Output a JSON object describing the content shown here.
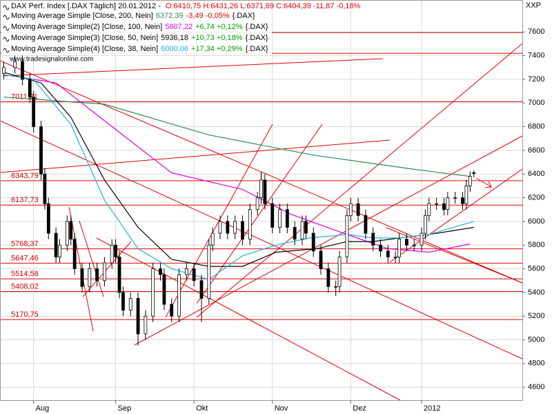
{
  "chart_data": {
    "type": "candlestick",
    "header": {
      "instrument": "DAX Perf. Index [.DAX Täglich] 20.01.2012 - ",
      "quote": "O:6410,75 H:6431,26 L:6371,69 C:6404,39 -11,87 -0,18%"
    },
    "watermark": "www.tradesignalonline.com",
    "axis_label": "XXP",
    "xlim": [
      -1,
      139
    ],
    "ylim": [
      4490,
      7870
    ],
    "yticks": [
      4600,
      4800,
      5000,
      5200,
      5400,
      5600,
      5800,
      6000,
      6200,
      6400,
      6600,
      6800,
      7000,
      7200,
      7400,
      7600
    ],
    "xticks": [
      {
        "value": 8,
        "label": "Aug"
      },
      {
        "value": 30,
        "label": "Sep"
      },
      {
        "value": 51,
        "label": "Okt"
      },
      {
        "value": 72,
        "label": "Nov"
      },
      {
        "value": 93,
        "label": "Dez"
      },
      {
        "value": 112,
        "label": "2012"
      }
    ],
    "grid": true,
    "up_color": "#ffffff",
    "down_color": "#000000",
    "x": [
      0,
      3,
      5,
      7,
      8,
      10,
      11,
      12,
      14,
      15,
      17,
      18,
      19,
      21,
      23,
      25,
      27,
      29,
      30,
      31,
      32,
      34,
      36,
      38,
      40,
      42,
      43,
      45,
      47,
      49,
      51,
      53,
      55,
      56,
      58,
      60,
      62,
      64,
      66,
      68,
      69,
      70,
      72,
      74,
      76,
      78,
      80,
      81,
      83,
      85,
      87,
      89,
      90,
      92,
      93,
      95,
      97,
      99,
      101,
      103,
      105,
      106,
      108,
      110,
      112,
      113,
      114,
      116,
      118,
      119,
      121,
      123,
      124,
      125,
      126
    ],
    "ohlc": [
      [
        7250,
        7350,
        7200,
        7300
      ],
      [
        7300,
        7400,
        7250,
        7350
      ],
      [
        7350,
        7400,
        7150,
        7200
      ],
      [
        7200,
        7250,
        7000,
        7050
      ],
      [
        7050,
        7100,
        6750,
        6800
      ],
      [
        6800,
        6850,
        6350,
        6400
      ],
      [
        6400,
        6450,
        6100,
        6150
      ],
      [
        6150,
        6200,
        5850,
        5900
      ],
      [
        5900,
        5950,
        5650,
        5700
      ],
      [
        5700,
        5850,
        5650,
        5800
      ],
      [
        5800,
        6050,
        5750,
        6000
      ],
      [
        6000,
        6050,
        5800,
        5850
      ],
      [
        5850,
        5900,
        5550,
        5600
      ],
      [
        5600,
        5650,
        5400,
        5450
      ],
      [
        5450,
        5650,
        5400,
        5600
      ],
      [
        5600,
        5650,
        5450,
        5500
      ],
      [
        5500,
        5700,
        5450,
        5650
      ],
      [
        5650,
        5850,
        5600,
        5800
      ],
      [
        5800,
        5850,
        5650,
        5700
      ],
      [
        5700,
        5750,
        5350,
        5400
      ],
      [
        5400,
        5450,
        5200,
        5250
      ],
      [
        5250,
        5400,
        5200,
        5350
      ],
      [
        5350,
        5400,
        4950,
        5050
      ],
      [
        5050,
        5250,
        5000,
        5200
      ],
      [
        5200,
        5650,
        5150,
        5600
      ],
      [
        5600,
        5650,
        5500,
        5550
      ],
      [
        5550,
        5600,
        5250,
        5300
      ],
      [
        5300,
        5350,
        5150,
        5200
      ],
      [
        5200,
        5600,
        5150,
        5550
      ],
      [
        5550,
        5650,
        5500,
        5600
      ],
      [
        5600,
        5650,
        5450,
        5500
      ],
      [
        5500,
        5550,
        5150,
        5350
      ],
      [
        5350,
        5850,
        5300,
        5800
      ],
      [
        5800,
        5950,
        5750,
        5900
      ],
      [
        5900,
        6050,
        5850,
        6000
      ],
      [
        6000,
        6050,
        5850,
        5900
      ],
      [
        5900,
        6050,
        5850,
        6000
      ],
      [
        6000,
        6050,
        5800,
        5850
      ],
      [
        5850,
        6150,
        5800,
        6100
      ],
      [
        6100,
        6250,
        6050,
        6200
      ],
      [
        6200,
        6420,
        6150,
        6350
      ],
      [
        6350,
        6400,
        6100,
        6150
      ],
      [
        6150,
        6200,
        5900,
        5950
      ],
      [
        5950,
        6150,
        5900,
        6100
      ],
      [
        6100,
        6150,
        5900,
        5950
      ],
      [
        5950,
        6000,
        5800,
        5850
      ],
      [
        5850,
        6050,
        5800,
        6000
      ],
      [
        6000,
        6050,
        5850,
        5900
      ],
      [
        5900,
        5950,
        5700,
        5750
      ],
      [
        5750,
        5800,
        5550,
        5600
      ],
      [
        5600,
        5650,
        5400,
        5450
      ],
      [
        5450,
        5500,
        5370,
        5450
      ],
      [
        5450,
        5750,
        5400,
        5700
      ],
      [
        5700,
        6100,
        5650,
        6050
      ],
      [
        6050,
        6200,
        6000,
        6150
      ],
      [
        6150,
        6200,
        6000,
        6050
      ],
      [
        6050,
        6100,
        5850,
        5900
      ],
      [
        5900,
        5950,
        5750,
        5800
      ],
      [
        5800,
        5850,
        5700,
        5750
      ],
      [
        5750,
        5800,
        5650,
        5700
      ],
      [
        5700,
        5750,
        5650,
        5700
      ],
      [
        5700,
        5900,
        5650,
        5850
      ],
      [
        5850,
        5900,
        5750,
        5800
      ],
      [
        5800,
        5850,
        5750,
        5800
      ],
      [
        5800,
        5950,
        5750,
        5900
      ],
      [
        5900,
        6100,
        5850,
        6050
      ],
      [
        6050,
        6200,
        6000,
        6150
      ],
      [
        6150,
        6200,
        6100,
        6150
      ],
      [
        6150,
        6200,
        6050,
        6100
      ],
      [
        6100,
        6250,
        6050,
        6200
      ],
      [
        6200,
        6250,
        6150,
        6200
      ],
      [
        6200,
        6250,
        6100,
        6150
      ],
      [
        6150,
        6350,
        6100,
        6300
      ],
      [
        6300,
        6420,
        6250,
        6380
      ],
      [
        6410.75,
        6431.26,
        6371.69,
        6404.39
      ]
    ],
    "levels": [
      {
        "value": 7011.21,
        "label": "7011,21"
      },
      {
        "value": 6343.79,
        "label": "6343,79"
      },
      {
        "value": 6137.73,
        "label": "6137,73"
      },
      {
        "value": 5768.37,
        "label": "5768,37"
      },
      {
        "value": 5647.46,
        "label": "5647,46"
      },
      {
        "value": 5514.58,
        "label": "5514,58"
      },
      {
        "value": 5408.02,
        "label": "5408,02"
      },
      {
        "value": 5170.75,
        "label": "5170,75"
      }
    ],
    "unlabeled_levels": [
      7595,
      7420
    ],
    "level_color": "#e00000",
    "series": [
      {
        "name": "Moving Average Simple [Close, 200, Nein]",
        "last": "6372,39",
        "change": "-3,49 -0,05%",
        "change_color": "#e00000",
        "symbol": "{.DAX}",
        "color": "#2e8b57",
        "x": [
          0,
          27,
          55,
          83,
          110,
          125
        ],
        "values": [
          7050,
          6990,
          6730,
          6560,
          6440,
          6380
        ]
      },
      {
        "name": "Moving Average Simple(2) [Close, 100, Nein]",
        "last": "5807,22",
        "change": "+6,74 +0,12%",
        "change_color": "#00a000",
        "symbol": "{.DAX}",
        "color": "#e000e0",
        "x": [
          0,
          14,
          27,
          45,
          64,
          77,
          92,
          103,
          114,
          125
        ],
        "values": [
          7240,
          7170,
          6850,
          6410,
          6270,
          6060,
          5890,
          5770,
          5740,
          5810
        ]
      },
      {
        "name": "Moving Average Simple(3) [Close, 50, Nein]",
        "last": "5936,18",
        "change": "+10,73 +0,18%",
        "change_color": "#00a000",
        "symbol": "{.DAX}",
        "color": "#000000",
        "x": [
          0,
          10,
          18,
          27,
          36,
          45,
          55,
          64,
          73,
          84,
          92,
          99,
          106,
          114,
          126
        ],
        "values": [
          7260,
          7170,
          6880,
          6350,
          5950,
          5680,
          5620,
          5620,
          5740,
          5770,
          5830,
          5830,
          5860,
          5890,
          5950
        ]
      },
      {
        "name": "Moving Average Simple(4) [Close, 38, Nein]",
        "last": "6000,06",
        "change": "+17,34 +0,29%",
        "change_color": "#00a000",
        "symbol": "{.DAX}",
        "color": "#20b0e0",
        "x": [
          0,
          8,
          18,
          27,
          36,
          45,
          55,
          64,
          73,
          82,
          92,
          99,
          106,
          114,
          126
        ],
        "values": [
          7240,
          7200,
          6820,
          6180,
          5770,
          5600,
          5510,
          5710,
          5800,
          5860,
          5890,
          5860,
          5860,
          5890,
          6000
        ]
      }
    ]
  }
}
